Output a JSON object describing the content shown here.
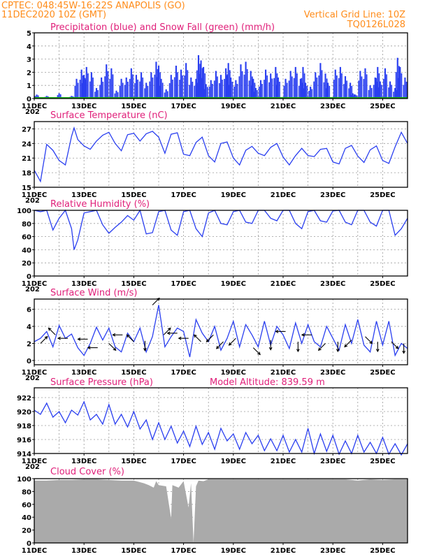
{
  "header": {
    "line1": "CPTEC:   048:45W-16:22S   ANAPOLIS (GO)",
    "line2_left": "11DEC2020 10Z (GMT)",
    "line2_right": "Vertical Grid Line: 10Z",
    "line3_right": "TQ0126L028"
  },
  "x_tick_labels": [
    "11DEC",
    "13DEC",
    "15DEC",
    "17DEC",
    "19DEC",
    "21DEC",
    "23DEC",
    "25DEC"
  ],
  "x_tick_sub": "202",
  "colors": {
    "precip": "#2a3ff0",
    "snow": "#18b018",
    "line": "#2a3ff0",
    "cloud": "#aaaaaa",
    "title": "#e0207a",
    "header": "#ff8c1a"
  },
  "chart_data": [
    {
      "type": "bar",
      "title": "Precipitation (blue) and Snow Fall (green) (mm/h)",
      "x_range": [
        0,
        15
      ],
      "ylim": [
        0,
        5
      ],
      "yticks": [
        0,
        1,
        2,
        3,
        4,
        5
      ],
      "series": [
        {
          "name": "Precipitation",
          "x": [
            0.1,
            0.5,
            1.0,
            1.5,
            1.7,
            1.9,
            2.0,
            2.1,
            2.3,
            2.5,
            2.7,
            2.9,
            3.1,
            3.3,
            3.5,
            3.7,
            3.9,
            4.1,
            4.3,
            4.5,
            4.7,
            4.9,
            5.0,
            5.1,
            5.3,
            5.5,
            5.7,
            5.9,
            6.1,
            6.3,
            6.5,
            6.6,
            6.7,
            6.8,
            6.9,
            7.1,
            7.3,
            7.5,
            7.7,
            7.8,
            7.9,
            8.1,
            8.3,
            8.5,
            8.7,
            8.8,
            8.9,
            9.1,
            9.3,
            9.5,
            9.7,
            9.8,
            10.1,
            10.3,
            10.5,
            10.7,
            10.8,
            10.9,
            11.1,
            11.3,
            11.5,
            11.7,
            11.8,
            12.1,
            12.3,
            12.5,
            12.7,
            12.8,
            12.9,
            13.1,
            13.3,
            13.5,
            13.7,
            13.8,
            13.9,
            14.1,
            14.3,
            14.5,
            14.6,
            14.7,
            14.9
          ],
          "values": [
            0.3,
            0.2,
            0.4,
            0.2,
            1.5,
            2.2,
            1.8,
            2.4,
            2.0,
            0.8,
            1.6,
            2.6,
            2.3,
            0.6,
            1.5,
            1.6,
            2.3,
            1.8,
            2.0,
            1.2,
            2.0,
            2.8,
            2.5,
            1.5,
            0.7,
            1.8,
            2.5,
            2.2,
            2.7,
            1.6,
            1.5,
            3.3,
            2.9,
            2.4,
            1.1,
            1.4,
            2.1,
            1.8,
            2.3,
            2.7,
            1.6,
            1.4,
            2.6,
            2.8,
            2.1,
            1.5,
            0.8,
            1.4,
            2.2,
            1.9,
            2.4,
            1.6,
            1.5,
            2.1,
            2.4,
            1.5,
            2.4,
            1.2,
            0.9,
            2.0,
            2.7,
            1.9,
            1.2,
            2.2,
            2.4,
            1.7,
            1.2,
            0.4,
            0.3,
            2.1,
            2.3,
            1.0,
            1.6,
            2.4,
            1.3,
            2.3,
            1.3,
            0.8,
            3.1,
            2.4,
            1.6
          ]
        },
        {
          "name": "Snow Fall",
          "x": [
            0,
            15
          ],
          "values": [
            0,
            0
          ]
        }
      ]
    },
    {
      "type": "line",
      "title": "Surface Temperature (nC)",
      "x_range": [
        0,
        15
      ],
      "ylim": [
        15,
        28.5
      ],
      "yticks": [
        15,
        18,
        21,
        24,
        27
      ],
      "series": [
        {
          "name": "Temperature",
          "x": [
            0,
            0.25,
            0.5,
            0.75,
            1.0,
            1.25,
            1.5,
            1.6,
            1.75,
            2.0,
            2.25,
            2.5,
            2.75,
            3.0,
            3.25,
            3.5,
            3.75,
            4.0,
            4.25,
            4.5,
            4.75,
            5.0,
            5.25,
            5.5,
            5.75,
            6.0,
            6.25,
            6.5,
            6.75,
            7.0,
            7.25,
            7.5,
            7.75,
            8.0,
            8.25,
            8.5,
            8.75,
            9.0,
            9.25,
            9.5,
            9.75,
            10.0,
            10.25,
            10.5,
            10.75,
            11.0,
            11.25,
            11.5,
            11.75,
            12.0,
            12.25,
            12.5,
            12.75,
            13.0,
            13.25,
            13.5,
            13.75,
            14.0,
            14.25,
            14.5,
            14.75,
            15.0
          ],
          "values": [
            18.5,
            16.2,
            23.8,
            22.6,
            20.5,
            19.6,
            25.5,
            27.2,
            24.8,
            23.5,
            22.8,
            24.5,
            25.7,
            26.3,
            24.0,
            22.5,
            25.8,
            26.1,
            24.5,
            26.0,
            26.5,
            25.3,
            22.0,
            25.9,
            26.2,
            21.8,
            21.5,
            24.2,
            25.3,
            21.5,
            20.2,
            24.0,
            24.3,
            21.0,
            19.6,
            22.6,
            23.4,
            22.0,
            21.5,
            23.2,
            24.0,
            21.2,
            19.6,
            21.5,
            23.0,
            21.5,
            21.3,
            22.8,
            23.0,
            20.2,
            19.8,
            23.0,
            23.6,
            21.4,
            20.1,
            22.7,
            23.5,
            20.5,
            19.9,
            23.3,
            26.3,
            24.0
          ]
        }
      ]
    },
    {
      "type": "line",
      "title": "Relative Humidity (%)",
      "x_range": [
        0,
        15
      ],
      "ylim": [
        0,
        100
      ],
      "yticks": [
        0,
        20,
        40,
        60,
        80,
        100
      ],
      "series": [
        {
          "name": "Relative Humidity",
          "x": [
            0,
            0.25,
            0.5,
            0.75,
            1.0,
            1.25,
            1.5,
            1.6,
            1.75,
            2.0,
            2.25,
            2.5,
            2.75,
            3.0,
            3.25,
            3.5,
            3.75,
            4.0,
            4.25,
            4.5,
            4.75,
            5.0,
            5.25,
            5.5,
            5.75,
            6.0,
            6.25,
            6.5,
            6.75,
            7.0,
            7.25,
            7.5,
            7.75,
            8.0,
            8.25,
            8.5,
            8.75,
            9.0,
            9.25,
            9.5,
            9.75,
            10.0,
            10.25,
            10.5,
            10.75,
            11.0,
            11.25,
            11.5,
            11.75,
            12.0,
            12.25,
            12.5,
            12.75,
            13.0,
            13.25,
            13.5,
            13.75,
            14.0,
            14.25,
            14.5,
            14.75,
            15.0
          ],
          "values": [
            100,
            98,
            100,
            70,
            88,
            100,
            72,
            40,
            55,
            96,
            98,
            100,
            78,
            65,
            74,
            82,
            92,
            85,
            100,
            64,
            66,
            98,
            100,
            70,
            62,
            98,
            100,
            72,
            60,
            96,
            100,
            80,
            78,
            98,
            100,
            82,
            80,
            100,
            100,
            88,
            84,
            100,
            100,
            80,
            72,
            98,
            100,
            84,
            82,
            99,
            100,
            82,
            78,
            100,
            100,
            82,
            76,
            100,
            100,
            62,
            72,
            88
          ]
        }
      ]
    },
    {
      "type": "line",
      "title": "Surface Wind (m/s)",
      "x_range": [
        0,
        15
      ],
      "ylim": [
        -0.5,
        7.2
      ],
      "yticks": [
        0,
        2,
        4,
        6
      ],
      "series": [
        {
          "name": "Wind speed",
          "x": [
            0,
            0.25,
            0.5,
            0.75,
            1.0,
            1.25,
            1.5,
            1.75,
            2.0,
            2.25,
            2.5,
            2.75,
            3.0,
            3.25,
            3.5,
            3.75,
            4.0,
            4.25,
            4.5,
            4.75,
            5.0,
            5.25,
            5.5,
            5.75,
            6.0,
            6.25,
            6.5,
            6.75,
            7.0,
            7.25,
            7.5,
            7.75,
            8.0,
            8.25,
            8.5,
            8.75,
            9.0,
            9.25,
            9.5,
            9.75,
            10.0,
            10.25,
            10.5,
            10.75,
            11.0,
            11.25,
            11.5,
            11.75,
            12.0,
            12.25,
            12.5,
            12.75,
            13.0,
            13.25,
            13.5,
            13.75,
            14.0,
            14.25,
            14.5,
            14.75,
            15.0
          ],
          "values": [
            2.2,
            2.6,
            3.4,
            1.6,
            4.1,
            2.6,
            3.1,
            1.5,
            0.6,
            2.0,
            3.9,
            2.4,
            3.8,
            1.6,
            1.0,
            3.2,
            2.2,
            3.8,
            1.0,
            2.8,
            6.5,
            1.6,
            2.8,
            3.8,
            3.4,
            0.4,
            4.8,
            3.2,
            2.2,
            4.0,
            1.2,
            2.6,
            4.6,
            1.6,
            4.2,
            3.0,
            1.6,
            4.6,
            1.8,
            4.0,
            3.0,
            1.4,
            4.4,
            2.0,
            4.2,
            2.2,
            1.6,
            4.0,
            2.6,
            1.2,
            4.2,
            2.0,
            4.8,
            1.8,
            1.0,
            4.6,
            1.8,
            4.6,
            0.6,
            2.0,
            1.4
          ]
        }
      ],
      "arrows": [
        {
          "x": 0.25,
          "speed": 2.0,
          "dir": "NE"
        },
        {
          "x": 0.85,
          "speed": 3.0,
          "dir": "NW"
        },
        {
          "x": 1.35,
          "speed": 2.6,
          "dir": "W"
        },
        {
          "x": 2.15,
          "speed": 2.5,
          "dir": "W"
        },
        {
          "x": 2.55,
          "speed": 1.5,
          "dir": "W"
        },
        {
          "x": 3.0,
          "speed": 2.0,
          "dir": "SE"
        },
        {
          "x": 3.55,
          "speed": 3.0,
          "dir": "W"
        },
        {
          "x": 4.0,
          "speed": 2.2,
          "dir": "NW"
        },
        {
          "x": 4.45,
          "speed": 2.3,
          "dir": "S"
        },
        {
          "x": 4.75,
          "speed": 6.5,
          "dir": "NE"
        },
        {
          "x": 5.2,
          "speed": 3.0,
          "dir": "NE"
        },
        {
          "x": 5.75,
          "speed": 3.2,
          "dir": "W"
        },
        {
          "x": 6.2,
          "speed": 2.6,
          "dir": "W"
        },
        {
          "x": 6.7,
          "speed": 2.2,
          "dir": "NW"
        },
        {
          "x": 7.2,
          "speed": 3.0,
          "dir": "SW"
        },
        {
          "x": 7.6,
          "speed": 2.2,
          "dir": "SW"
        },
        {
          "x": 8.1,
          "speed": 2.6,
          "dir": "SW"
        },
        {
          "x": 8.8,
          "speed": 1.5,
          "dir": "SE"
        },
        {
          "x": 9.5,
          "speed": 2.4,
          "dir": "S"
        },
        {
          "x": 10.1,
          "speed": 3.4,
          "dir": "W"
        },
        {
          "x": 10.6,
          "speed": 2.2,
          "dir": "S"
        },
        {
          "x": 11.15,
          "speed": 3.0,
          "dir": "W"
        },
        {
          "x": 11.7,
          "speed": 2.0,
          "dir": "SW"
        },
        {
          "x": 12.2,
          "speed": 2.2,
          "dir": "S"
        },
        {
          "x": 12.75,
          "speed": 2.4,
          "dir": "SW"
        },
        {
          "x": 13.3,
          "speed": 2.8,
          "dir": "SE"
        },
        {
          "x": 13.8,
          "speed": 2.2,
          "dir": "S"
        },
        {
          "x": 14.35,
          "speed": 2.2,
          "dir": "SE"
        },
        {
          "x": 14.85,
          "speed": 2.0,
          "dir": "S"
        }
      ]
    },
    {
      "type": "line",
      "title": "Surface Pressure (hPa)",
      "annotation": "Model Altitude: 839.59  m",
      "x_range": [
        0,
        15
      ],
      "ylim": [
        914,
        923.4
      ],
      "yticks": [
        914,
        916,
        918,
        920,
        922
      ],
      "series": [
        {
          "name": "Pressure",
          "x": [
            0,
            0.25,
            0.5,
            0.75,
            1.0,
            1.25,
            1.5,
            1.75,
            2.0,
            2.25,
            2.5,
            2.75,
            3.0,
            3.25,
            3.5,
            3.75,
            4.0,
            4.25,
            4.5,
            4.75,
            5.0,
            5.25,
            5.5,
            5.75,
            6.0,
            6.25,
            6.5,
            6.75,
            7.0,
            7.25,
            7.5,
            7.75,
            8.0,
            8.25,
            8.5,
            8.75,
            9.0,
            9.25,
            9.5,
            9.75,
            10.0,
            10.25,
            10.5,
            10.75,
            11.0,
            11.25,
            11.5,
            11.75,
            12.0,
            12.25,
            12.5,
            12.75,
            13.0,
            13.25,
            13.5,
            13.75,
            14.0,
            14.25,
            14.5,
            14.75,
            15.0
          ],
          "values": [
            920.2,
            919.6,
            921.2,
            919.2,
            920.0,
            918.4,
            920.2,
            919.5,
            921.4,
            918.8,
            919.6,
            918.2,
            921.0,
            918.2,
            919.6,
            917.8,
            920.0,
            917.5,
            918.8,
            916.0,
            918.4,
            916.0,
            917.9,
            915.5,
            917.2,
            915.0,
            917.9,
            915.3,
            917.0,
            914.6,
            917.6,
            915.8,
            916.8,
            914.6,
            917.0,
            915.4,
            916.6,
            914.4,
            916.1,
            914.4,
            916.6,
            914.2,
            916.0,
            914.2,
            917.6,
            914.0,
            916.8,
            914.3,
            916.6,
            913.9,
            915.8,
            914.0,
            916.6,
            914.2,
            915.6,
            914.0,
            916.3,
            913.9,
            915.4,
            913.8,
            915.4
          ]
        }
      ]
    },
    {
      "type": "area",
      "title": "Cloud Cover (%)",
      "x_range": [
        0,
        15
      ],
      "ylim": [
        0,
        100
      ],
      "yticks": [
        0,
        20,
        40,
        60,
        80,
        100
      ],
      "series": [
        {
          "name": "Cloud Cover",
          "x": [
            0,
            0.5,
            1.0,
            1.5,
            2.0,
            2.5,
            3.0,
            3.5,
            4.0,
            4.2,
            4.4,
            4.6,
            4.8,
            4.9,
            5.0,
            5.3,
            5.5,
            5.55,
            5.8,
            6.0,
            6.2,
            6.3,
            6.4,
            6.5,
            6.6,
            6.8,
            7.0,
            7.5,
            8.0,
            8.5,
            9.0,
            9.5,
            10.0,
            10.5,
            11.0,
            11.5,
            12.0,
            12.5,
            13.0,
            13.5,
            14.0,
            14.5,
            15.0
          ],
          "values": [
            97,
            97,
            98,
            98,
            99,
            99,
            98,
            97,
            97,
            95,
            93,
            90,
            86,
            96,
            90,
            88,
            38,
            90,
            86,
            96,
            55,
            93,
            0,
            88,
            97,
            96,
            99,
            99,
            99,
            99,
            99,
            99,
            99,
            99,
            99,
            99,
            99,
            99,
            97,
            99,
            98,
            99,
            99
          ]
        }
      ]
    }
  ]
}
